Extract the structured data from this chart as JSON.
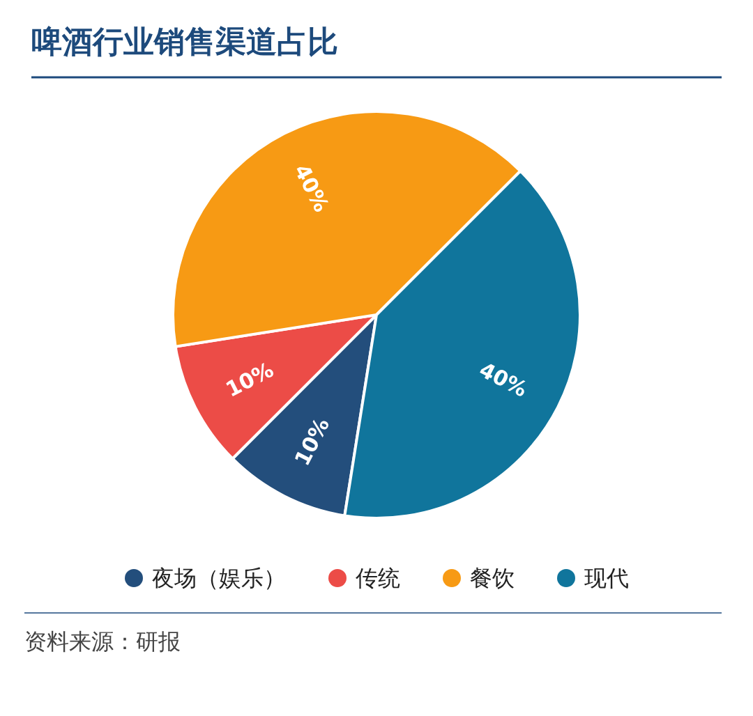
{
  "chart_data": {
    "type": "pie",
    "title": "啤酒行业销售渠道占比",
    "categories": [
      "夜场（娱乐）",
      "传统",
      "餐饮",
      "现代"
    ],
    "values": [
      10,
      10,
      40,
      40
    ],
    "value_labels": [
      "10%",
      "10%",
      "40%",
      "40%"
    ],
    "colors": [
      "#234e7c",
      "#ec4c47",
      "#f79a14",
      "#10759c"
    ],
    "legend": "bottom",
    "annotations": [
      "资料来源：研报"
    ]
  }
}
